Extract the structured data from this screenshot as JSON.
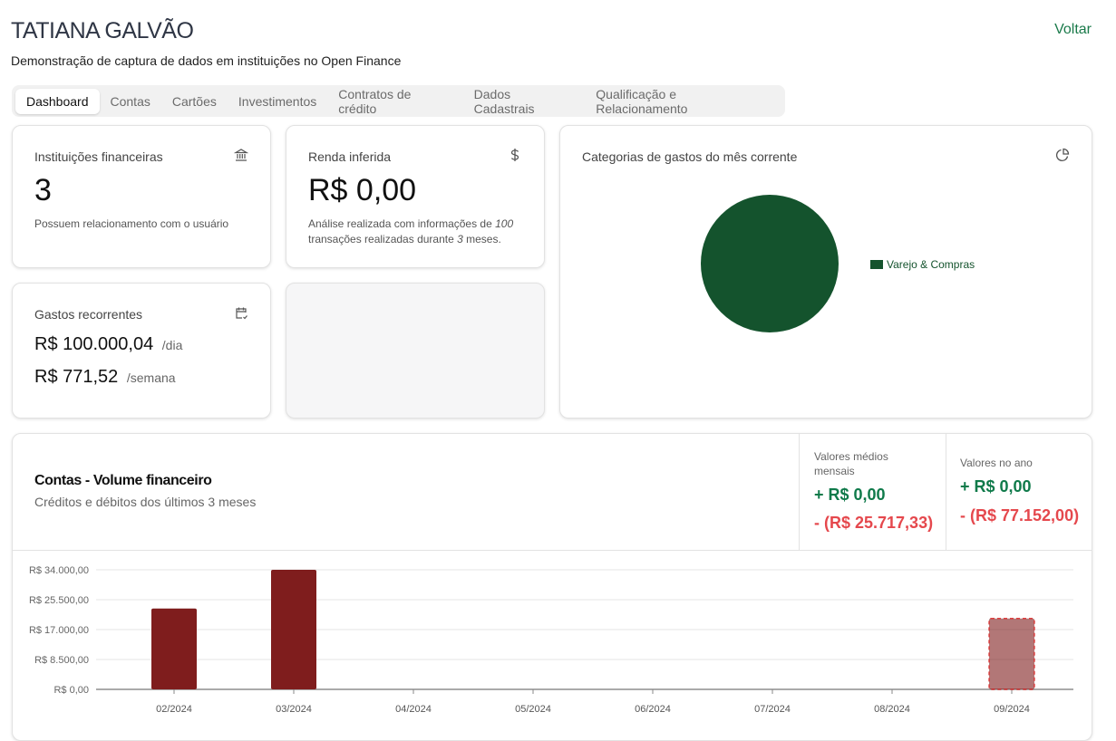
{
  "header": {
    "title": "TATIANA GALVÃO",
    "subtitle": "Demonstração de captura de dados em instituições no Open Finance",
    "back_label": "Voltar"
  },
  "tabs": [
    {
      "label": "Dashboard",
      "active": true
    },
    {
      "label": "Contas"
    },
    {
      "label": "Cartões"
    },
    {
      "label": "Investimentos"
    },
    {
      "label": "Contratos de crédito"
    },
    {
      "label": "Dados Cadastrais"
    },
    {
      "label": "Qualificação e Relacionamento"
    }
  ],
  "cards": {
    "institutions": {
      "title": "Instituições financeiras",
      "value": "3",
      "note": "Possuem relacionamento com o usuário",
      "icon": "bank-icon"
    },
    "income": {
      "title": "Renda inferida",
      "value": "R$ 0,00",
      "note_a": "Análise realizada com informações de ",
      "note_n1": "100",
      "note_b": " transações realizadas durante ",
      "note_n2": "3",
      "note_c": " meses.",
      "icon": "dollar-icon"
    },
    "recurring": {
      "title": "Gastos recorrentes",
      "daily": "R$ 100.000,04",
      "daily_unit": "/dia",
      "weekly": "R$ 771,52",
      "weekly_unit": "/semana",
      "icon": "calendar-check-icon"
    },
    "categories": {
      "title": "Categorias de gastos do mês corrente",
      "icon": "pie-chart-icon",
      "legend": "Varejo & Compras",
      "color": "#14532d"
    }
  },
  "volume": {
    "title": "Contas - Volume financeiro",
    "subtitle": "Créditos e débitos dos últimos 3 meses",
    "avg_label": "Valores médios mensais",
    "avg_credit": "+ R$ 0,00",
    "avg_debit": "- (R$ 25.717,33)",
    "year_label": "Valores no ano",
    "year_credit": "+ R$ 0,00",
    "year_debit": "- (R$ 77.152,00)"
  },
  "chart_data": {
    "type": "bar",
    "categories": [
      "02/2024",
      "03/2024",
      "04/2024",
      "05/2024",
      "06/2024",
      "07/2024",
      "08/2024",
      "09/2024"
    ],
    "series": [
      {
        "name": "Débitos",
        "values": [
          23000,
          34000,
          0,
          0,
          0,
          0,
          0,
          20152
        ],
        "projected": [
          false,
          false,
          false,
          false,
          false,
          false,
          false,
          true
        ],
        "color": "#7f1d1d"
      }
    ],
    "yticks": [
      "R$ 0,00",
      "R$ 8.500,00",
      "R$ 17.000,00",
      "R$ 25.500,00",
      "R$ 34.000,00"
    ],
    "ylim": [
      0,
      34000
    ]
  }
}
